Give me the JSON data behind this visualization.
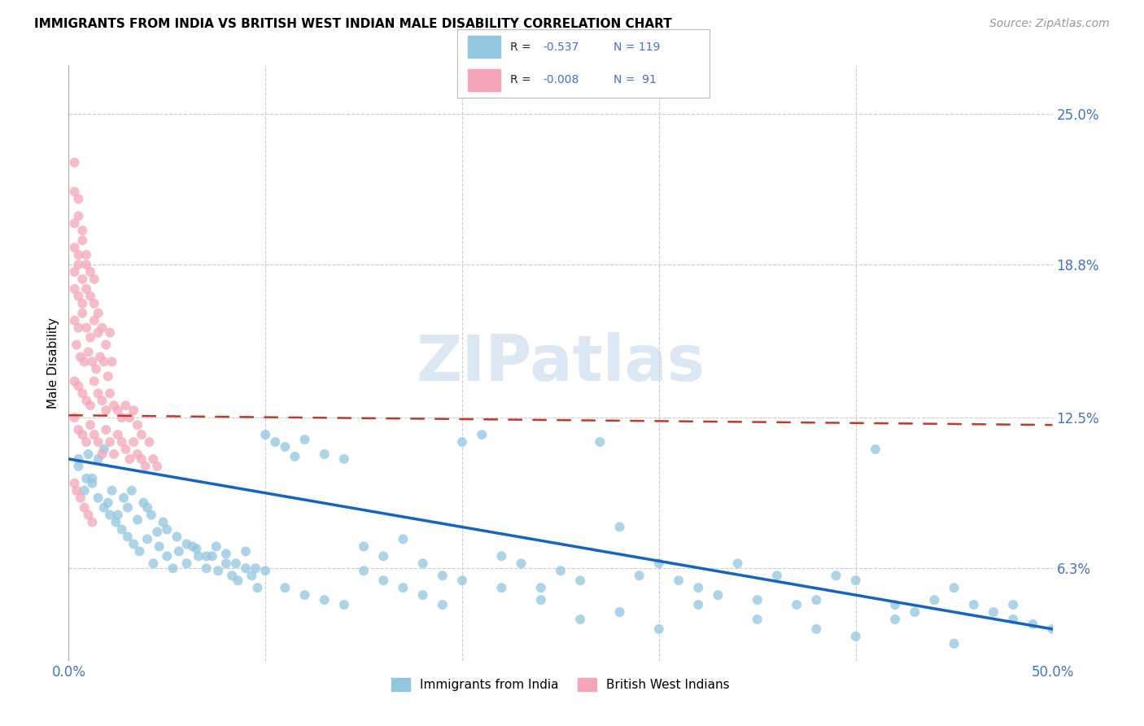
{
  "title": "IMMIGRANTS FROM INDIA VS BRITISH WEST INDIAN MALE DISABILITY CORRELATION CHART",
  "source": "Source: ZipAtlas.com",
  "ylabel": "Male Disability",
  "ytick_labels": [
    "25.0%",
    "18.8%",
    "12.5%",
    "6.3%"
  ],
  "ytick_values": [
    0.25,
    0.188,
    0.125,
    0.063
  ],
  "xlim": [
    0.0,
    0.5
  ],
  "ylim": [
    0.025,
    0.27
  ],
  "legend_label_blue": "Immigrants from India",
  "legend_label_pink": "British West Indians",
  "blue_color": "#92C5DE",
  "pink_color": "#F4A6B8",
  "line_blue": "#1565C0",
  "line_pink": "#C0392B",
  "blue_line_x": [
    0.0,
    0.5
  ],
  "blue_line_y": [
    0.108,
    0.038
  ],
  "pink_line_x": [
    0.0,
    0.5
  ],
  "pink_line_y": [
    0.126,
    0.122
  ],
  "blue_scatter_x": [
    0.005,
    0.008,
    0.01,
    0.012,
    0.015,
    0.018,
    0.02,
    0.022,
    0.025,
    0.028,
    0.03,
    0.032,
    0.035,
    0.038,
    0.04,
    0.042,
    0.045,
    0.048,
    0.05,
    0.055,
    0.06,
    0.065,
    0.07,
    0.075,
    0.08,
    0.085,
    0.09,
    0.095,
    0.1,
    0.105,
    0.11,
    0.115,
    0.12,
    0.13,
    0.14,
    0.15,
    0.16,
    0.17,
    0.18,
    0.19,
    0.2,
    0.21,
    0.22,
    0.23,
    0.24,
    0.25,
    0.26,
    0.27,
    0.28,
    0.29,
    0.3,
    0.31,
    0.32,
    0.33,
    0.34,
    0.35,
    0.36,
    0.37,
    0.38,
    0.39,
    0.4,
    0.41,
    0.42,
    0.43,
    0.44,
    0.45,
    0.46,
    0.47,
    0.48,
    0.49,
    0.005,
    0.009,
    0.012,
    0.015,
    0.018,
    0.021,
    0.024,
    0.027,
    0.03,
    0.033,
    0.036,
    0.04,
    0.043,
    0.046,
    0.05,
    0.053,
    0.056,
    0.06,
    0.063,
    0.066,
    0.07,
    0.073,
    0.076,
    0.08,
    0.083,
    0.086,
    0.09,
    0.093,
    0.096,
    0.1,
    0.11,
    0.12,
    0.13,
    0.14,
    0.15,
    0.16,
    0.17,
    0.18,
    0.19,
    0.2,
    0.22,
    0.24,
    0.26,
    0.28,
    0.3,
    0.32,
    0.35,
    0.38,
    0.4,
    0.42,
    0.45,
    0.48,
    0.5
  ],
  "blue_scatter_y": [
    0.105,
    0.095,
    0.11,
    0.1,
    0.108,
    0.112,
    0.09,
    0.095,
    0.085,
    0.092,
    0.088,
    0.095,
    0.083,
    0.09,
    0.088,
    0.085,
    0.078,
    0.082,
    0.079,
    0.076,
    0.073,
    0.071,
    0.068,
    0.072,
    0.069,
    0.065,
    0.07,
    0.063,
    0.118,
    0.115,
    0.113,
    0.109,
    0.116,
    0.11,
    0.108,
    0.072,
    0.068,
    0.075,
    0.065,
    0.06,
    0.115,
    0.118,
    0.068,
    0.065,
    0.055,
    0.062,
    0.058,
    0.115,
    0.08,
    0.06,
    0.065,
    0.058,
    0.055,
    0.052,
    0.065,
    0.05,
    0.06,
    0.048,
    0.05,
    0.06,
    0.058,
    0.112,
    0.048,
    0.045,
    0.05,
    0.055,
    0.048,
    0.045,
    0.042,
    0.04,
    0.108,
    0.1,
    0.098,
    0.092,
    0.088,
    0.085,
    0.082,
    0.079,
    0.076,
    0.073,
    0.07,
    0.075,
    0.065,
    0.072,
    0.068,
    0.063,
    0.07,
    0.065,
    0.072,
    0.068,
    0.063,
    0.068,
    0.062,
    0.065,
    0.06,
    0.058,
    0.063,
    0.06,
    0.055,
    0.062,
    0.055,
    0.052,
    0.05,
    0.048,
    0.062,
    0.058,
    0.055,
    0.052,
    0.048,
    0.058,
    0.055,
    0.05,
    0.042,
    0.045,
    0.038,
    0.048,
    0.042,
    0.038,
    0.035,
    0.042,
    0.032,
    0.048,
    0.038,
    0.025
  ],
  "pink_scatter_x": [
    0.003,
    0.005,
    0.007,
    0.009,
    0.011,
    0.013,
    0.015,
    0.017,
    0.019,
    0.021,
    0.023,
    0.025,
    0.027,
    0.029,
    0.031,
    0.033,
    0.035,
    0.037,
    0.039,
    0.041,
    0.043,
    0.045,
    0.003,
    0.005,
    0.007,
    0.009,
    0.011,
    0.013,
    0.015,
    0.017,
    0.019,
    0.021,
    0.023,
    0.025,
    0.027,
    0.029,
    0.031,
    0.033,
    0.035,
    0.037,
    0.004,
    0.006,
    0.008,
    0.01,
    0.012,
    0.014,
    0.016,
    0.018,
    0.02,
    0.022,
    0.003,
    0.005,
    0.007,
    0.009,
    0.011,
    0.013,
    0.015,
    0.017,
    0.019,
    0.021,
    0.003,
    0.005,
    0.007,
    0.009,
    0.011,
    0.013,
    0.015,
    0.003,
    0.005,
    0.007,
    0.009,
    0.011,
    0.013,
    0.003,
    0.005,
    0.007,
    0.009,
    0.003,
    0.005,
    0.007,
    0.003,
    0.005,
    0.003,
    0.003,
    0.004,
    0.006,
    0.008,
    0.01,
    0.012
  ],
  "pink_scatter_y": [
    0.125,
    0.12,
    0.118,
    0.115,
    0.122,
    0.118,
    0.115,
    0.11,
    0.12,
    0.115,
    0.11,
    0.118,
    0.115,
    0.112,
    0.108,
    0.115,
    0.11,
    0.108,
    0.105,
    0.115,
    0.108,
    0.105,
    0.14,
    0.138,
    0.135,
    0.132,
    0.13,
    0.14,
    0.135,
    0.132,
    0.128,
    0.135,
    0.13,
    0.128,
    0.125,
    0.13,
    0.125,
    0.128,
    0.122,
    0.118,
    0.155,
    0.15,
    0.148,
    0.152,
    0.148,
    0.145,
    0.15,
    0.148,
    0.142,
    0.148,
    0.165,
    0.162,
    0.168,
    0.162,
    0.158,
    0.165,
    0.16,
    0.162,
    0.155,
    0.16,
    0.178,
    0.175,
    0.172,
    0.178,
    0.175,
    0.172,
    0.168,
    0.185,
    0.188,
    0.182,
    0.188,
    0.185,
    0.182,
    0.195,
    0.192,
    0.198,
    0.192,
    0.205,
    0.208,
    0.202,
    0.218,
    0.215,
    0.23,
    0.098,
    0.095,
    0.092,
    0.088,
    0.085,
    0.082
  ]
}
